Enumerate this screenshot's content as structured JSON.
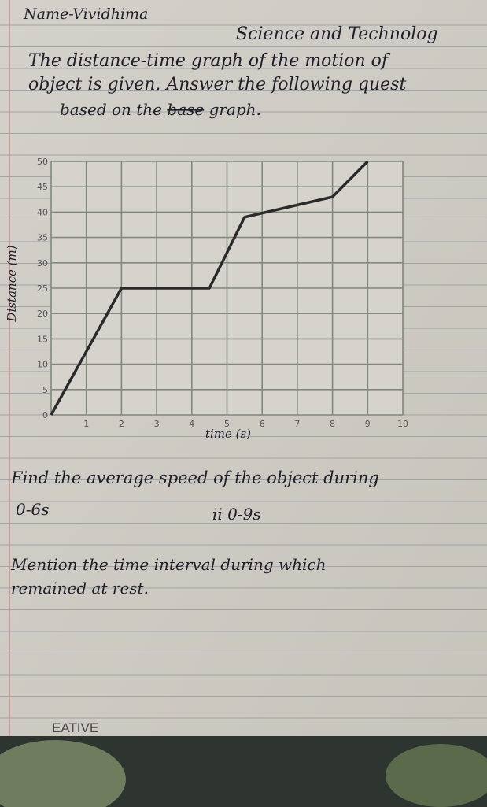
{
  "header": {
    "name": "Name-Vividhima",
    "subject": "Science and Technolog"
  },
  "instructions": {
    "line1": "The distance-time graph of the motion of",
    "line2": "object is given. Answer the following quest",
    "line3_before": "based on the",
    "line3_struck": "base",
    "line3_after": "graph."
  },
  "chart_data": {
    "type": "line",
    "xlabel": "time (s)",
    "ylabel": "Distance (m)",
    "x": [
      0,
      2,
      4.5,
      5.5,
      8,
      9
    ],
    "values": [
      0,
      25,
      25,
      39,
      43,
      50
    ],
    "color": "#2a2a2a",
    "xlim": [
      0,
      10
    ],
    "ylim": [
      0,
      50
    ],
    "xticks": [
      0,
      1,
      2,
      3,
      4,
      5,
      6,
      7,
      8,
      9,
      10
    ],
    "yticks": [
      0,
      5,
      10,
      15,
      20,
      25,
      30,
      35,
      40,
      45,
      50
    ],
    "grid": true
  },
  "questions": {
    "q1": "Find the average speed of the object during",
    "q1_part1": "0-6s",
    "q1_part2": "ii 0-9s",
    "q2": "Mention the time interval during which",
    "q2_cont": "remained at rest."
  },
  "footer": {
    "brand": "EATIVE"
  }
}
